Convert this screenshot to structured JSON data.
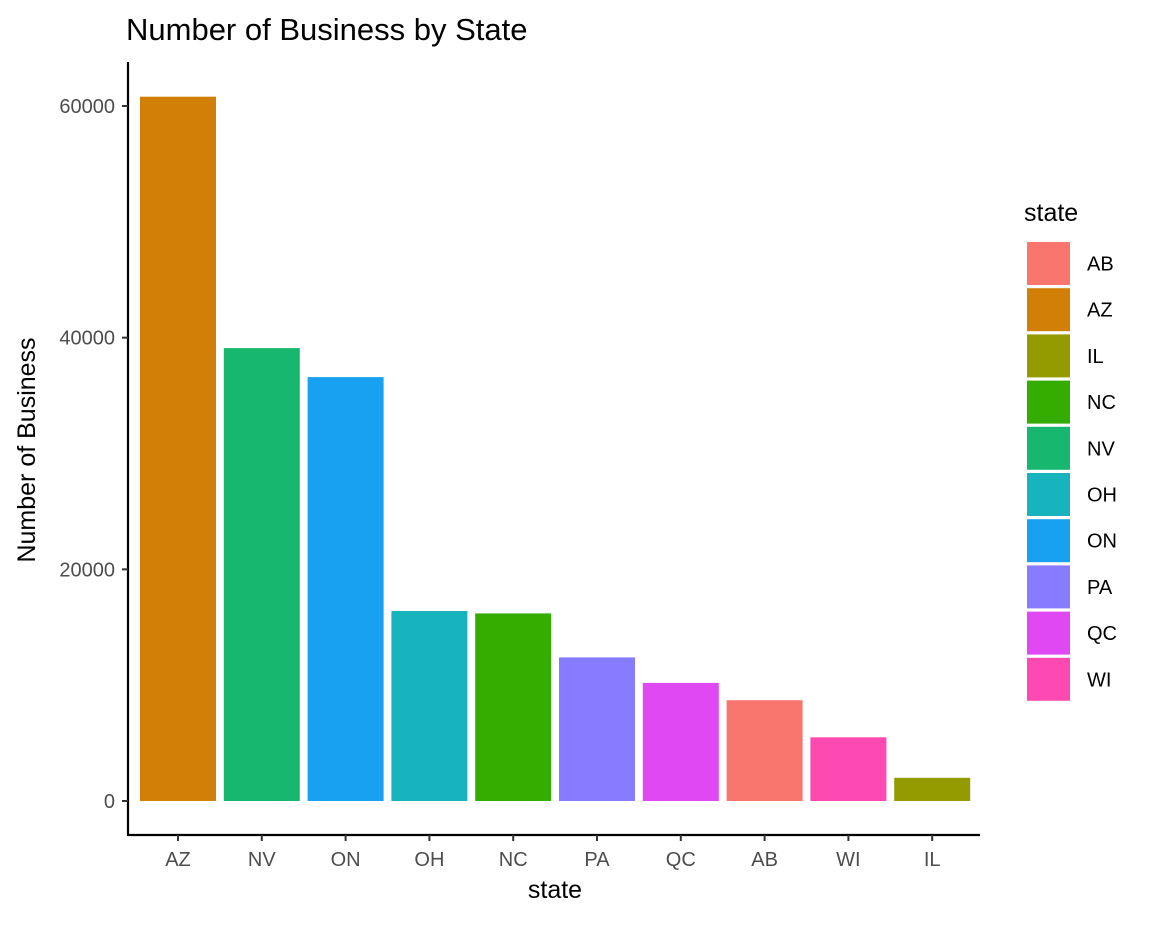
{
  "chart_data": {
    "type": "bar",
    "title": "Number of Business by State",
    "xlabel": "state",
    "ylabel": "Number of Business",
    "categories": [
      "AZ",
      "NV",
      "ON",
      "OH",
      "NC",
      "PA",
      "QC",
      "AB",
      "WI",
      "IL"
    ],
    "values": [
      60800,
      39100,
      36600,
      16400,
      16200,
      12400,
      10200,
      8700,
      5500,
      2000
    ],
    "ylim": [
      0,
      63000
    ],
    "yticks": [
      0,
      20000,
      40000,
      60000
    ],
    "ytick_labels": [
      "0",
      "20000",
      "40000",
      "60000"
    ],
    "grid": false,
    "legend": {
      "title": "state",
      "placement": "right",
      "entries": [
        {
          "label": "AB",
          "color": "#F8766D"
        },
        {
          "label": "AZ",
          "color": "#D39200"
        },
        {
          "label": "IL",
          "color": "#93AA00"
        },
        {
          "label": "NC",
          "color": "#00BA38"
        },
        {
          "label": "NV",
          "color": "#00C19F"
        },
        {
          "label": "OH",
          "color": "#00B9E3"
        },
        {
          "label": "ON",
          "color": "#1AA0F0"
        },
        {
          "label": "PA",
          "color": "#8B80FF"
        },
        {
          "label": "QC",
          "color": "#E24EF2"
        },
        {
          "label": "WI",
          "color": "#FF4FB5"
        }
      ]
    },
    "colors": {
      "AB": "#F8766D",
      "AZ": "#D17F06",
      "IL": "#949B00",
      "NC": "#34AD00",
      "NV": "#18B770",
      "OH": "#17B4BD",
      "ON": "#18A1F1",
      "PA": "#877CFF",
      "QC": "#E048F3",
      "WI": "#FD4AB3"
    }
  }
}
